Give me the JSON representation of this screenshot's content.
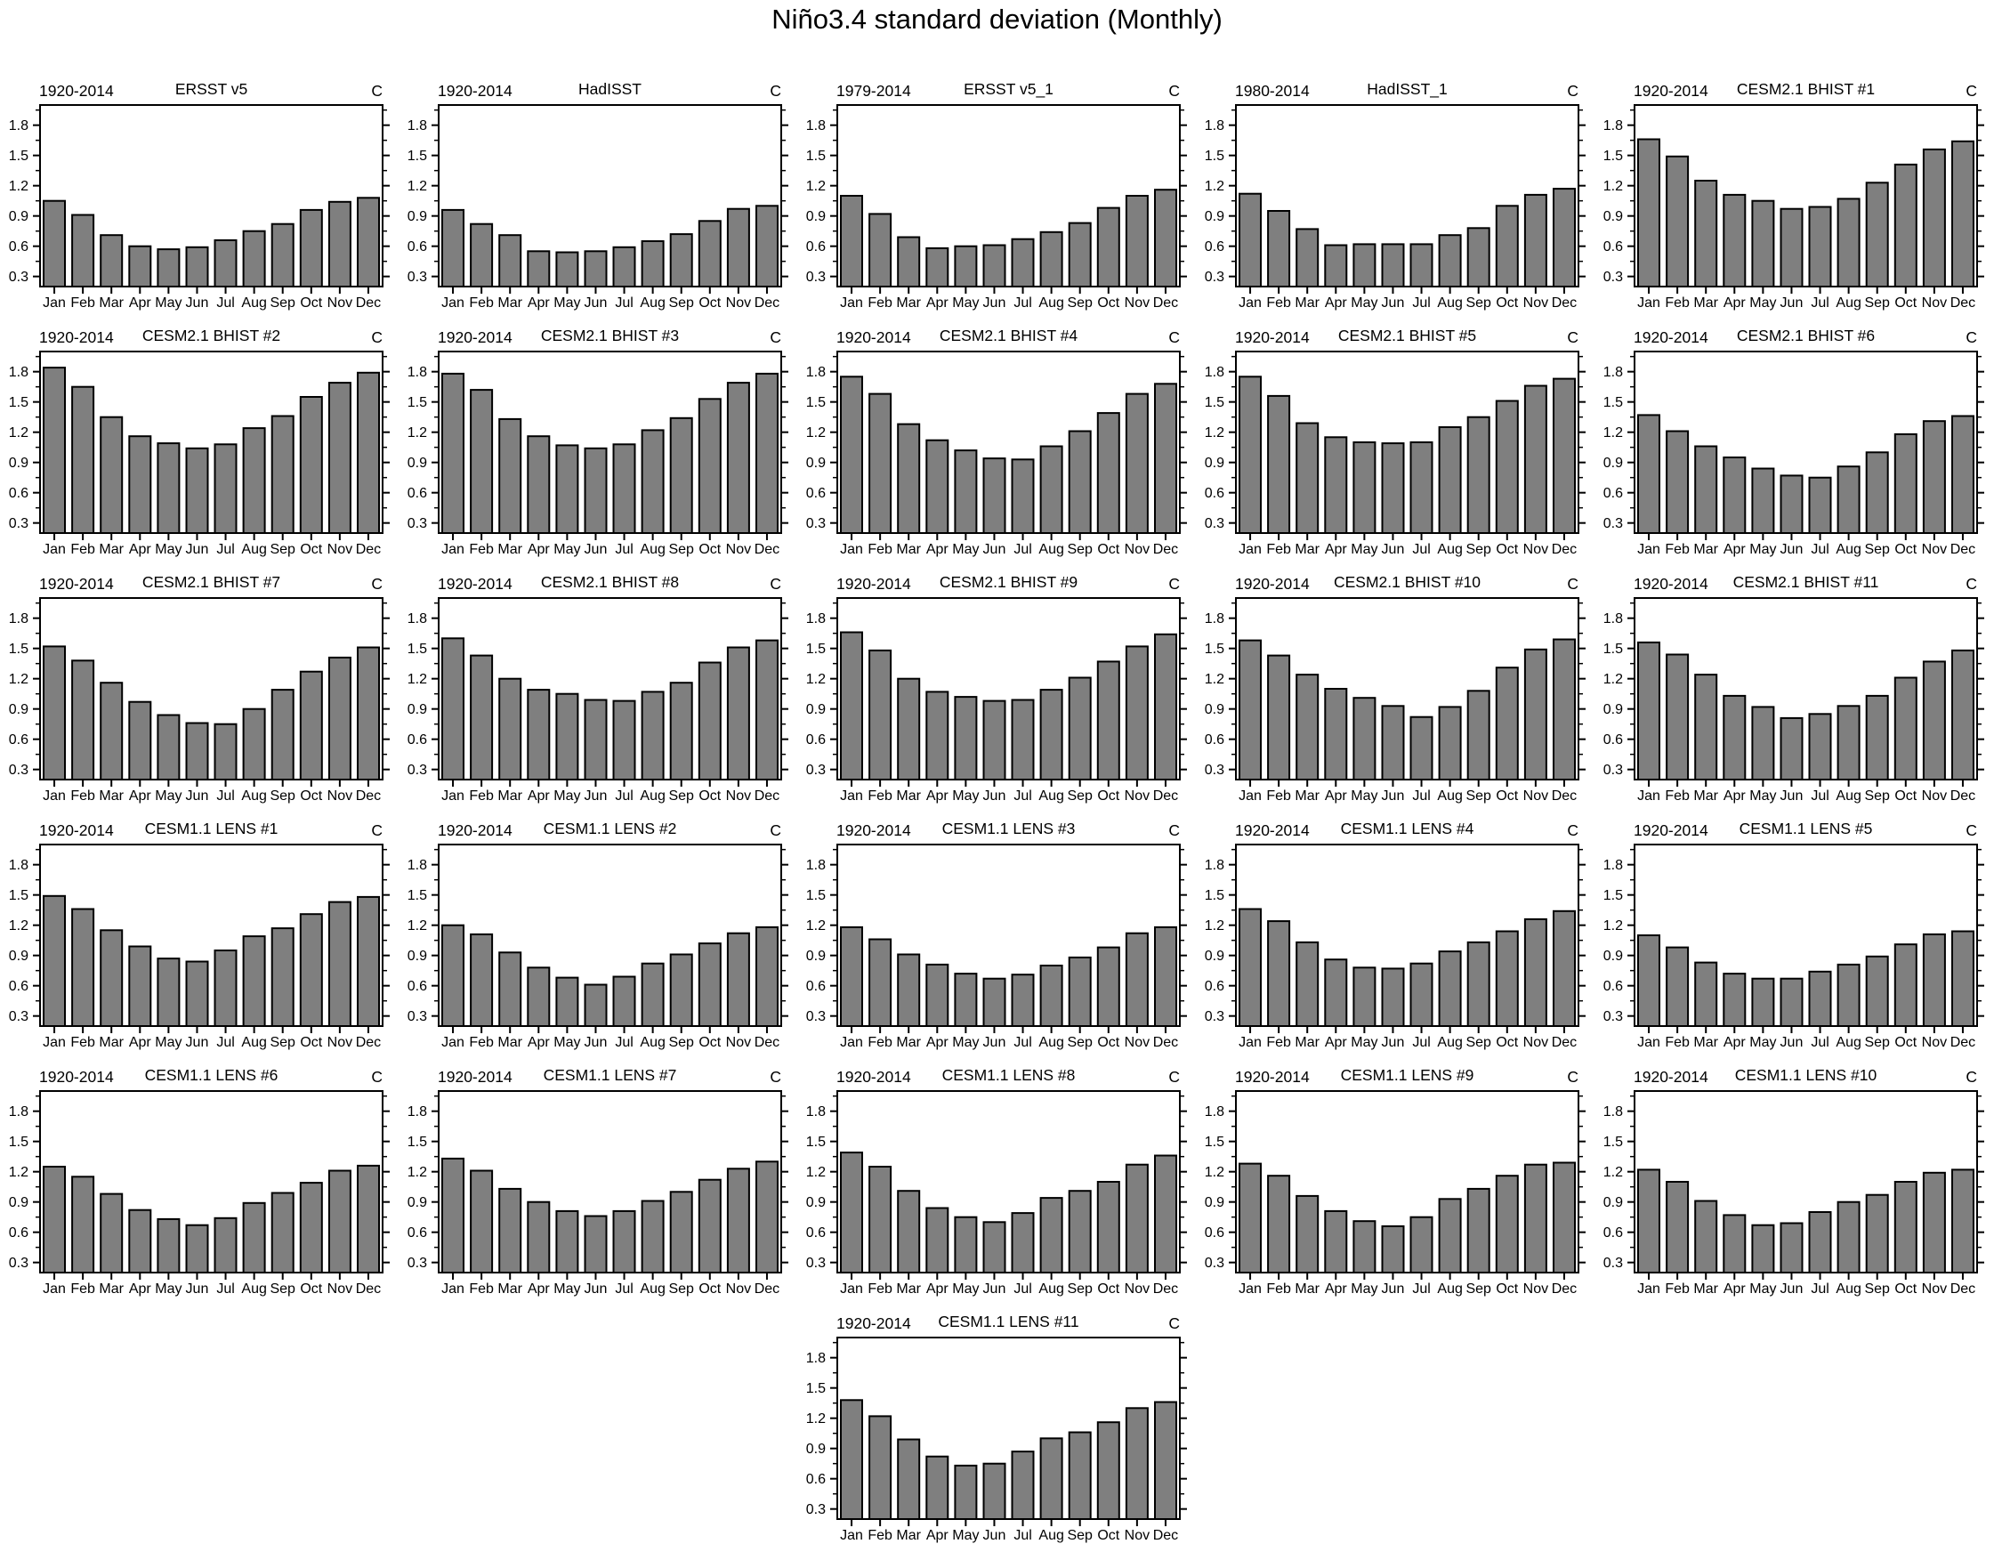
{
  "title": "Niño3.4 standard deviation (Monthly)",
  "chart_data": {
    "type": "bar",
    "categories": [
      "Jan",
      "Feb",
      "Mar",
      "Apr",
      "May",
      "Jun",
      "Jul",
      "Aug",
      "Sep",
      "Oct",
      "Nov",
      "Dec"
    ],
    "ylabel": "",
    "xlabel": "",
    "ylim": [
      0.2,
      2.0
    ],
    "yticks": [
      0.3,
      0.6,
      0.9,
      1.2,
      1.5,
      1.8
    ],
    "grid": false,
    "bar_color": "#7f7f7f",
    "bar_edge_color": "#000000",
    "layout_hint": {
      "rows": 6,
      "cols": 5,
      "last_panel_column": 3
    },
    "panels": [
      {
        "period": "1920-2014",
        "name": "ERSST v5",
        "units": "C",
        "values": [
          1.05,
          0.91,
          0.71,
          0.6,
          0.57,
          0.59,
          0.66,
          0.75,
          0.82,
          0.96,
          1.04,
          1.08
        ]
      },
      {
        "period": "1920-2014",
        "name": "HadISST",
        "units": "C",
        "values": [
          0.96,
          0.82,
          0.71,
          0.55,
          0.54,
          0.55,
          0.59,
          0.65,
          0.72,
          0.85,
          0.97,
          1.0
        ]
      },
      {
        "period": "1979-2014",
        "name": "ERSST v5_1",
        "units": "C",
        "values": [
          1.1,
          0.92,
          0.69,
          0.58,
          0.6,
          0.61,
          0.67,
          0.74,
          0.83,
          0.98,
          1.1,
          1.16
        ]
      },
      {
        "period": "1980-2014",
        "name": "HadISST_1",
        "units": "C",
        "values": [
          1.12,
          0.95,
          0.77,
          0.61,
          0.62,
          0.62,
          0.62,
          0.71,
          0.78,
          1.0,
          1.11,
          1.17
        ]
      },
      {
        "period": "1920-2014",
        "name": "CESM2.1 BHIST #1",
        "units": "C",
        "values": [
          1.66,
          1.49,
          1.25,
          1.11,
          1.05,
          0.97,
          0.99,
          1.07,
          1.23,
          1.41,
          1.56,
          1.64
        ]
      },
      {
        "period": "1920-2014",
        "name": "CESM2.1 BHIST #2",
        "units": "C",
        "values": [
          1.84,
          1.65,
          1.35,
          1.16,
          1.09,
          1.04,
          1.08,
          1.24,
          1.36,
          1.55,
          1.69,
          1.79
        ]
      },
      {
        "period": "1920-2014",
        "name": "CESM2.1 BHIST #3",
        "units": "C",
        "values": [
          1.78,
          1.62,
          1.33,
          1.16,
          1.07,
          1.04,
          1.08,
          1.22,
          1.34,
          1.53,
          1.69,
          1.78
        ]
      },
      {
        "period": "1920-2014",
        "name": "CESM2.1 BHIST #4",
        "units": "C",
        "values": [
          1.75,
          1.58,
          1.28,
          1.12,
          1.02,
          0.94,
          0.93,
          1.06,
          1.21,
          1.39,
          1.58,
          1.68
        ]
      },
      {
        "period": "1920-2014",
        "name": "CESM2.1 BHIST #5",
        "units": "C",
        "values": [
          1.75,
          1.56,
          1.29,
          1.15,
          1.1,
          1.09,
          1.1,
          1.25,
          1.35,
          1.51,
          1.66,
          1.73
        ]
      },
      {
        "period": "1920-2014",
        "name": "CESM2.1 BHIST #6",
        "units": "C",
        "values": [
          1.37,
          1.21,
          1.06,
          0.95,
          0.84,
          0.77,
          0.75,
          0.86,
          1.0,
          1.18,
          1.31,
          1.36
        ]
      },
      {
        "period": "1920-2014",
        "name": "CESM2.1 BHIST #7",
        "units": "C",
        "values": [
          1.52,
          1.38,
          1.16,
          0.97,
          0.84,
          0.76,
          0.75,
          0.9,
          1.09,
          1.27,
          1.41,
          1.51
        ]
      },
      {
        "period": "1920-2014",
        "name": "CESM2.1 BHIST #8",
        "units": "C",
        "values": [
          1.6,
          1.43,
          1.2,
          1.09,
          1.05,
          0.99,
          0.98,
          1.07,
          1.16,
          1.36,
          1.51,
          1.58
        ]
      },
      {
        "period": "1920-2014",
        "name": "CESM2.1 BHIST #9",
        "units": "C",
        "values": [
          1.66,
          1.48,
          1.2,
          1.07,
          1.02,
          0.98,
          0.99,
          1.09,
          1.21,
          1.37,
          1.52,
          1.64
        ]
      },
      {
        "period": "1920-2014",
        "name": "CESM2.1 BHIST #10",
        "units": "C",
        "values": [
          1.58,
          1.43,
          1.24,
          1.1,
          1.01,
          0.93,
          0.82,
          0.92,
          1.08,
          1.31,
          1.49,
          1.59
        ]
      },
      {
        "period": "1920-2014",
        "name": "CESM2.1 BHIST #11",
        "units": "C",
        "values": [
          1.56,
          1.44,
          1.24,
          1.03,
          0.92,
          0.81,
          0.85,
          0.93,
          1.03,
          1.21,
          1.37,
          1.48
        ]
      },
      {
        "period": "1920-2014",
        "name": "CESM1.1 LENS #1",
        "units": "C",
        "values": [
          1.49,
          1.36,
          1.15,
          0.99,
          0.87,
          0.84,
          0.95,
          1.09,
          1.17,
          1.31,
          1.43,
          1.48
        ]
      },
      {
        "period": "1920-2014",
        "name": "CESM1.1 LENS #2",
        "units": "C",
        "values": [
          1.2,
          1.11,
          0.93,
          0.78,
          0.68,
          0.61,
          0.69,
          0.82,
          0.91,
          1.02,
          1.12,
          1.18
        ]
      },
      {
        "period": "1920-2014",
        "name": "CESM1.1 LENS #3",
        "units": "C",
        "values": [
          1.18,
          1.06,
          0.91,
          0.81,
          0.72,
          0.67,
          0.71,
          0.8,
          0.88,
          0.98,
          1.12,
          1.18
        ]
      },
      {
        "period": "1920-2014",
        "name": "CESM1.1 LENS #4",
        "units": "C",
        "values": [
          1.36,
          1.24,
          1.03,
          0.86,
          0.78,
          0.77,
          0.82,
          0.94,
          1.03,
          1.14,
          1.26,
          1.34
        ]
      },
      {
        "period": "1920-2014",
        "name": "CESM1.1 LENS #5",
        "units": "C",
        "values": [
          1.1,
          0.98,
          0.83,
          0.72,
          0.67,
          0.67,
          0.74,
          0.81,
          0.89,
          1.01,
          1.11,
          1.14
        ]
      },
      {
        "period": "1920-2014",
        "name": "CESM1.1 LENS #6",
        "units": "C",
        "values": [
          1.25,
          1.15,
          0.98,
          0.82,
          0.73,
          0.67,
          0.74,
          0.89,
          0.99,
          1.09,
          1.21,
          1.26
        ]
      },
      {
        "period": "1920-2014",
        "name": "CESM1.1 LENS #7",
        "units": "C",
        "values": [
          1.33,
          1.21,
          1.03,
          0.9,
          0.81,
          0.76,
          0.81,
          0.91,
          1.0,
          1.12,
          1.23,
          1.3
        ]
      },
      {
        "period": "1920-2014",
        "name": "CESM1.1 LENS #8",
        "units": "C",
        "values": [
          1.39,
          1.25,
          1.01,
          0.84,
          0.75,
          0.7,
          0.79,
          0.94,
          1.01,
          1.1,
          1.27,
          1.36
        ]
      },
      {
        "period": "1920-2014",
        "name": "CESM1.1 LENS #9",
        "units": "C",
        "values": [
          1.28,
          1.16,
          0.96,
          0.81,
          0.71,
          0.66,
          0.75,
          0.93,
          1.03,
          1.16,
          1.27,
          1.29
        ]
      },
      {
        "period": "1920-2014",
        "name": "CESM1.1 LENS #10",
        "units": "C",
        "values": [
          1.22,
          1.1,
          0.91,
          0.77,
          0.67,
          0.69,
          0.8,
          0.9,
          0.97,
          1.1,
          1.19,
          1.22
        ]
      },
      {
        "period": "1920-2014",
        "name": "CESM1.1 LENS #11",
        "units": "C",
        "values": [
          1.38,
          1.22,
          0.99,
          0.82,
          0.73,
          0.75,
          0.87,
          1.0,
          1.06,
          1.16,
          1.3,
          1.36
        ]
      }
    ]
  }
}
